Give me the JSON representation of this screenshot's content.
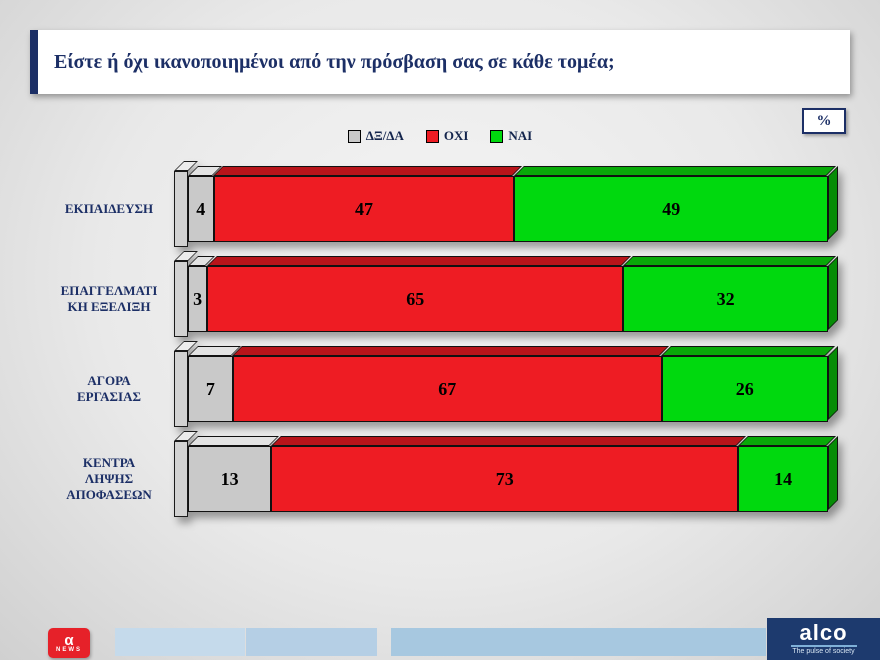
{
  "title": "Είστε ή όχι ικανοποιημένοι από την πρόσβαση σας σε κάθε τομέα;",
  "percent_badge": "%",
  "chart_data": {
    "type": "bar",
    "orientation": "horizontal",
    "stacked": true,
    "title": "Είστε ή όχι ικανοποιημένοι από την πρόσβαση σας σε κάθε τομέα;",
    "unit": "%",
    "xlim": [
      0,
      100
    ],
    "legend_position": "top",
    "grid": false,
    "categories": [
      "ΕΚΠΑΙΔΕΥΣΗ",
      "ΕΠΑΓΓΕΛΜΑΤΙΚΗ ΕΞΕΛΙΞΗ",
      "ΑΓΟΡΑ ΕΡΓΑΣΙΑΣ",
      "ΚΕΝΤΡΑ ΛΗΨΗΣ ΑΠΟΦΑΣΕΩΝ"
    ],
    "category_display": [
      "ΕΚΠΑΙΔΕΥΣΗ",
      "ΕΠΑΓΓΕΛΜΑΤΙ\nΚΗ ΕΞΕΛΙΞΗ",
      "ΑΓΟΡΑ\nΕΡΓΑΣΙΑΣ",
      "ΚΕΝΤΡΑ\nΛΗΨΗΣ\nΑΠΟΦΑΣΕΩΝ"
    ],
    "series": [
      {
        "key": "dx-da",
        "name": "ΔΞ/ΔΑ",
        "color": "#c9c9c9",
        "top_color": "#e3e3e3",
        "side_color": "#9b9b9b",
        "values": [
          4,
          3,
          7,
          13
        ]
      },
      {
        "key": "oxi",
        "name": "ΟΧΙ",
        "color": "#ee1c23",
        "top_color": "#b8141a",
        "side_color": "#930f14",
        "values": [
          47,
          65,
          67,
          73
        ]
      },
      {
        "key": "nai",
        "name": "ΝΑΙ",
        "color": "#00d90e",
        "top_color": "#08a908",
        "side_color": "#068c06",
        "values": [
          49,
          32,
          26,
          14
        ]
      }
    ]
  },
  "footer": {
    "alpha": {
      "symbol": "α",
      "news": "NEWS"
    },
    "alco": {
      "name": "alco",
      "tagline": "The pulse of society"
    }
  }
}
